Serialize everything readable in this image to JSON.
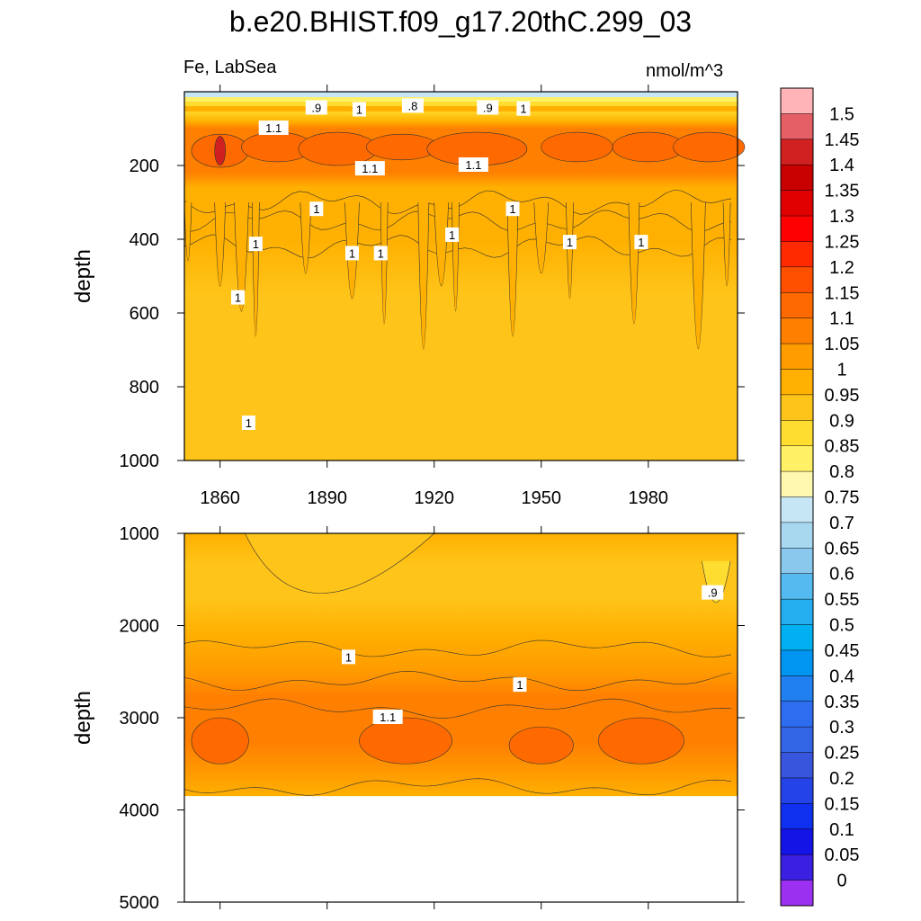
{
  "title": "b.e20.BHIST.f09_g17.20thC.299_03",
  "subtitle_left": "Fe, LabSea",
  "subtitle_right": "nmol/m^3",
  "chart_data": [
    {
      "type": "heatmap",
      "panel": "upper",
      "ylabel": "depth",
      "y_reversed": true,
      "ylim": [
        1000,
        0
      ],
      "yticks": [
        200,
        400,
        600,
        800,
        1000
      ],
      "xlim": [
        1850,
        2005
      ],
      "xticks": [
        1860,
        1890,
        1920,
        1950,
        1980
      ],
      "contour_labels": [
        {
          "text": ".9",
          "x": 1887,
          "y": 45
        },
        {
          "text": "1",
          "x": 1899,
          "y": 50
        },
        {
          "text": ".8",
          "x": 1914,
          "y": 40
        },
        {
          "text": ".9",
          "x": 1935,
          "y": 45
        },
        {
          "text": "1",
          "x": 1945,
          "y": 48
        },
        {
          "text": "1.1",
          "x": 1875,
          "y": 100
        },
        {
          "text": "1.1",
          "x": 1902,
          "y": 210
        },
        {
          "text": "1.1",
          "x": 1931,
          "y": 200
        },
        {
          "text": "1",
          "x": 1887,
          "y": 320
        },
        {
          "text": "1",
          "x": 1942,
          "y": 320
        },
        {
          "text": "1",
          "x": 1870,
          "y": 415
        },
        {
          "text": "1",
          "x": 1897,
          "y": 440
        },
        {
          "text": "1",
          "x": 1905,
          "y": 440
        },
        {
          "text": "1",
          "x": 1925,
          "y": 390
        },
        {
          "text": "1",
          "x": 1958,
          "y": 410
        },
        {
          "text": "1",
          "x": 1978,
          "y": 410
        },
        {
          "text": "1",
          "x": 1865,
          "y": 560
        },
        {
          "text": "1",
          "x": 1868,
          "y": 900
        }
      ]
    },
    {
      "type": "heatmap",
      "panel": "lower",
      "ylabel": "depth",
      "y_reversed": true,
      "ylim": [
        5000,
        1000
      ],
      "yticks": [
        1000,
        2000,
        3000,
        4000,
        5000
      ],
      "xlim": [
        1850,
        2005
      ],
      "data_bottom_depth": 3850,
      "contour_labels": [
        {
          "text": ".9",
          "x": 1998,
          "y": 1650
        },
        {
          "text": "1",
          "x": 1896,
          "y": 2350
        },
        {
          "text": "1",
          "x": 1944,
          "y": 2650
        },
        {
          "text": "1.1",
          "x": 1907,
          "y": 3000
        }
      ]
    }
  ],
  "colorbar": {
    "labels": [
      "1.5",
      "1.45",
      "1.4",
      "1.35",
      "1.3",
      "1.25",
      "1.2",
      "1.15",
      "1.1",
      "1.05",
      "1",
      "0.95",
      "0.9",
      "0.85",
      "0.8",
      "0.75",
      "0.7",
      "0.65",
      "0.6",
      "0.55",
      "0.5",
      "0.45",
      "0.4",
      "0.35",
      "0.3",
      "0.25",
      "0.2",
      "0.15",
      "0.1",
      "0.05",
      "0"
    ],
    "colors": [
      "#ffb4b8",
      "#e56066",
      "#d12020",
      "#c80000",
      "#e10000",
      "#ff0000",
      "#ff2a00",
      "#ff5000",
      "#ff6a00",
      "#ff8000",
      "#ff9c00",
      "#ffb000",
      "#ffc419",
      "#ffdc30",
      "#fff066",
      "#fff9b0",
      "#c6e6f5",
      "#a8d8f0",
      "#8ac8ee",
      "#55baef",
      "#25aeef",
      "#00b0f0",
      "#0095f0",
      "#2080f0",
      "#2e6cf0",
      "#3366e6",
      "#3855dd",
      "#2544e8",
      "#1030f0",
      "#1414e6",
      "#3a20e0",
      "#9b30f0"
    ]
  }
}
